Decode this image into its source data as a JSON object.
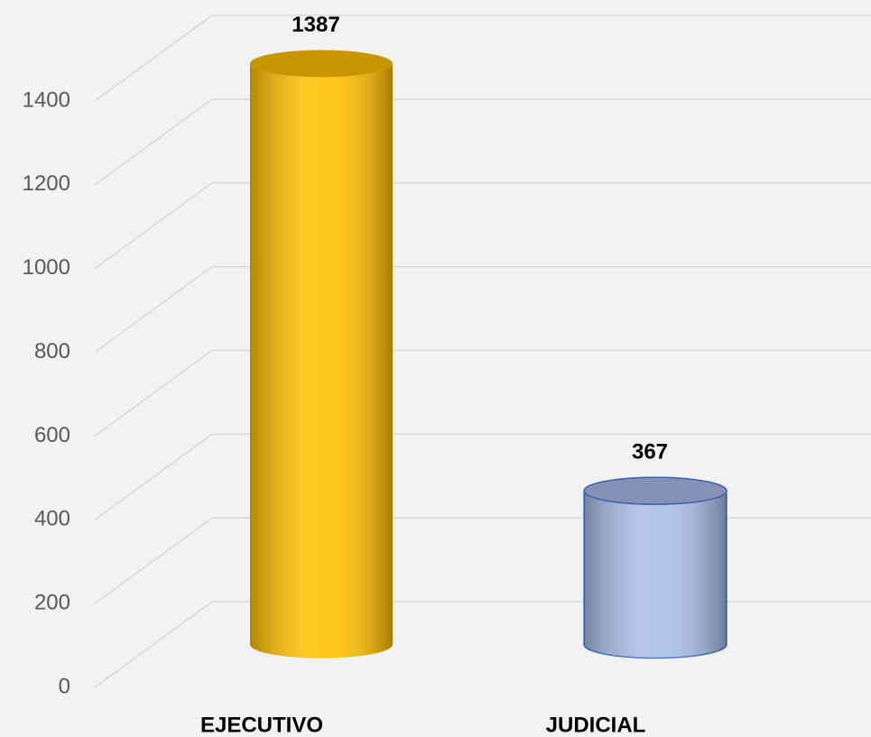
{
  "chart_data": {
    "type": "bar3d",
    "categories": [
      "EJECUTIVO",
      "JUDICIAL"
    ],
    "values": [
      1387,
      367
    ],
    "colors": [
      "#ffc000",
      "#a9bde8"
    ],
    "ylim": [
      0,
      1400
    ],
    "yticks": [
      0,
      200,
      400,
      600,
      800,
      1000,
      1200,
      1400
    ],
    "grid": true
  }
}
